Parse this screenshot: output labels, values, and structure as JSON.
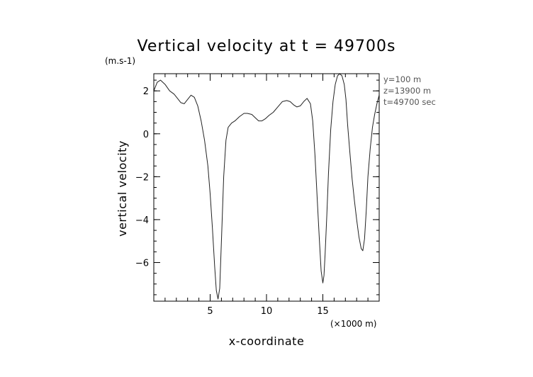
{
  "chart_data": {
    "type": "line",
    "title": "Vertical velocity at t = 49700s",
    "ylabel": "vertical velocity",
    "xlabel": "x-coordinate",
    "y_unit": "(m.s-1)",
    "x_unit": "(×1000 m)",
    "xlim": [
      0,
      20
    ],
    "ylim": [
      -7.8,
      2.8
    ],
    "x_ticks": [
      5,
      10,
      15
    ],
    "y_ticks": [
      2,
      0,
      -2,
      -4,
      -6
    ],
    "x_minor_step": 1,
    "y_minor_step": 0.5,
    "grid": false,
    "info_lines": [
      "y=100  m",
      "z=13900  m",
      "t=49700  sec"
    ],
    "series": [
      {
        "x": [
          0,
          0.3,
          0.6,
          1.0,
          1.4,
          1.8,
          2.1,
          2.4,
          2.7,
          3.0,
          3.3,
          3.6,
          3.9,
          4.2,
          4.5,
          4.8,
          5.0,
          5.2,
          5.4,
          5.55,
          5.7,
          5.85,
          6.0,
          6.2,
          6.4,
          6.6,
          6.9,
          7.2,
          7.6,
          8.0,
          8.3,
          8.7,
          9.0,
          9.3,
          9.6,
          9.9,
          10.2,
          10.6,
          11.0,
          11.4,
          11.8,
          12.1,
          12.4,
          12.7,
          13.0,
          13.3,
          13.6,
          13.9,
          14.1,
          14.3,
          14.5,
          14.7,
          14.85,
          15.0,
          15.1,
          15.2,
          15.35,
          15.5,
          15.7,
          15.9,
          16.1,
          16.3,
          16.5,
          16.7,
          16.9,
          17.05,
          17.2,
          17.4,
          17.6,
          17.8,
          18.0,
          18.2,
          18.4,
          18.55,
          18.7,
          18.85,
          19.0,
          19.2,
          19.4,
          19.6,
          19.8,
          20.0
        ],
        "y": [
          2.0,
          2.4,
          2.5,
          2.3,
          2.0,
          1.85,
          1.65,
          1.45,
          1.4,
          1.6,
          1.8,
          1.7,
          1.3,
          0.6,
          -0.3,
          -1.5,
          -2.8,
          -4.4,
          -6.2,
          -7.3,
          -7.7,
          -7.2,
          -5.0,
          -2.0,
          -0.3,
          0.3,
          0.5,
          0.6,
          0.8,
          0.95,
          0.95,
          0.9,
          0.75,
          0.6,
          0.6,
          0.7,
          0.85,
          1.0,
          1.25,
          1.5,
          1.55,
          1.5,
          1.35,
          1.25,
          1.3,
          1.5,
          1.65,
          1.4,
          0.6,
          -1.0,
          -3.0,
          -5.0,
          -6.4,
          -6.95,
          -6.6,
          -5.6,
          -3.8,
          -1.8,
          0.2,
          1.5,
          2.3,
          2.7,
          2.8,
          2.7,
          2.3,
          1.6,
          0.4,
          -0.9,
          -2.1,
          -3.1,
          -4.0,
          -4.8,
          -5.35,
          -5.45,
          -4.9,
          -3.6,
          -2.0,
          -0.7,
          0.3,
          0.9,
          1.4,
          1.8
        ]
      }
    ]
  }
}
